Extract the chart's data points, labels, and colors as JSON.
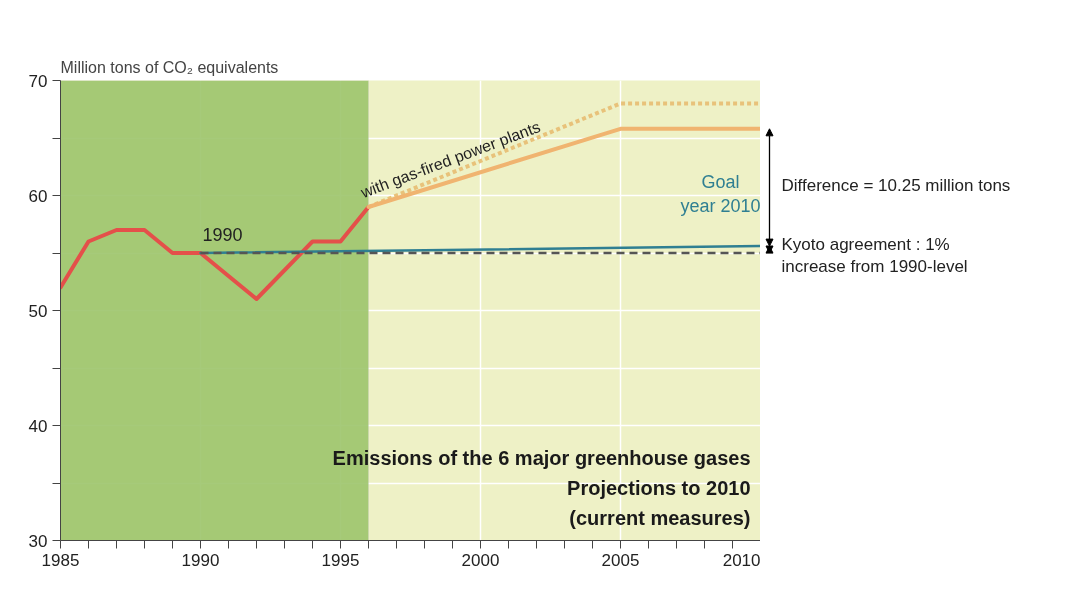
{
  "chart_data": {
    "type": "line",
    "title": "Emissions of the 6 major greenhouse gases",
    "subtitle": "Projections to 2010\n(current measures)",
    "ylabel": "Million tons of CO₂ equivalents",
    "series": [
      {
        "color": "#e4504a",
        "x": [
          1985,
          1986,
          1987,
          1988,
          1989,
          1990,
          1991,
          1992,
          1993,
          1994,
          1995,
          1996
        ],
        "values": [
          52,
          56,
          57,
          57,
          55,
          55,
          53,
          51,
          53.5,
          56,
          56,
          59
        ]
      },
      {
        "color": "#e8c27a",
        "line_style": "dotted",
        "x": [
          1996,
          2005,
          2010
        ],
        "values": [
          59,
          68,
          68
        ]
      },
      {
        "color": "#f0b470",
        "x": [
          1996,
          2005,
          2010
        ],
        "values": [
          59,
          65.8,
          65.8
        ]
      },
      {
        "color": "#2f7f92",
        "x": [
          1990,
          2010
        ],
        "values": [
          55,
          55.6
        ]
      },
      {
        "color": "#555555",
        "line_style": "dashed",
        "x": [
          1990,
          2010
        ],
        "values": [
          55,
          55
        ]
      }
    ],
    "xlim": [
      1985,
      2010
    ],
    "xticks": [
      1985,
      {
        "value": 1986,
        "label": null
      },
      {
        "value": 1987,
        "label": null
      },
      {
        "value": 1988,
        "label": null
      },
      {
        "value": 1989,
        "label": null
      },
      1990,
      {
        "value": 1991,
        "label": null
      },
      {
        "value": 1992,
        "label": null
      },
      {
        "value": 1993,
        "label": null
      },
      {
        "value": 1994,
        "label": null
      },
      1995,
      {
        "value": 1996,
        "label": null
      },
      {
        "value": 1997,
        "label": null
      },
      {
        "value": 1998,
        "label": null
      },
      {
        "value": 1999,
        "label": null
      },
      2000,
      {
        "value": 2001,
        "label": null
      },
      {
        "value": 2002,
        "label": null
      },
      {
        "value": 2003,
        "label": null
      },
      {
        "value": 2004,
        "label": null
      },
      2005,
      {
        "value": 2006,
        "label": null
      },
      {
        "value": 2007,
        "label": null
      },
      {
        "value": 2008,
        "label": null
      },
      {
        "value": 2009,
        "label": null
      },
      2010
    ],
    "ylim": [
      30,
      70
    ],
    "yticks": [
      30,
      {
        "value": 35,
        "label": null
      },
      40,
      {
        "value": 45,
        "label": null
      },
      50,
      {
        "value": 55,
        "label": null
      },
      60,
      {
        "value": 65,
        "label": null
      },
      70
    ],
    "grid": true,
    "bands": [
      {
        "axis": "x",
        "from": 1985,
        "to": 1996,
        "color": "#9cc46c"
      }
    ],
    "annotations": [
      {
        "text": "1990",
        "x": 1990,
        "y": 55
      },
      {
        "text": "with gas-fired power plants",
        "x": 1996,
        "y": 59
      },
      {
        "text": "Goal\nyear 2010",
        "x": 2010,
        "y": 55.6
      },
      "Difference = 10.25 million  tons",
      "Kyoto agreement : 1%\nincrease from 1990-level"
    ]
  }
}
